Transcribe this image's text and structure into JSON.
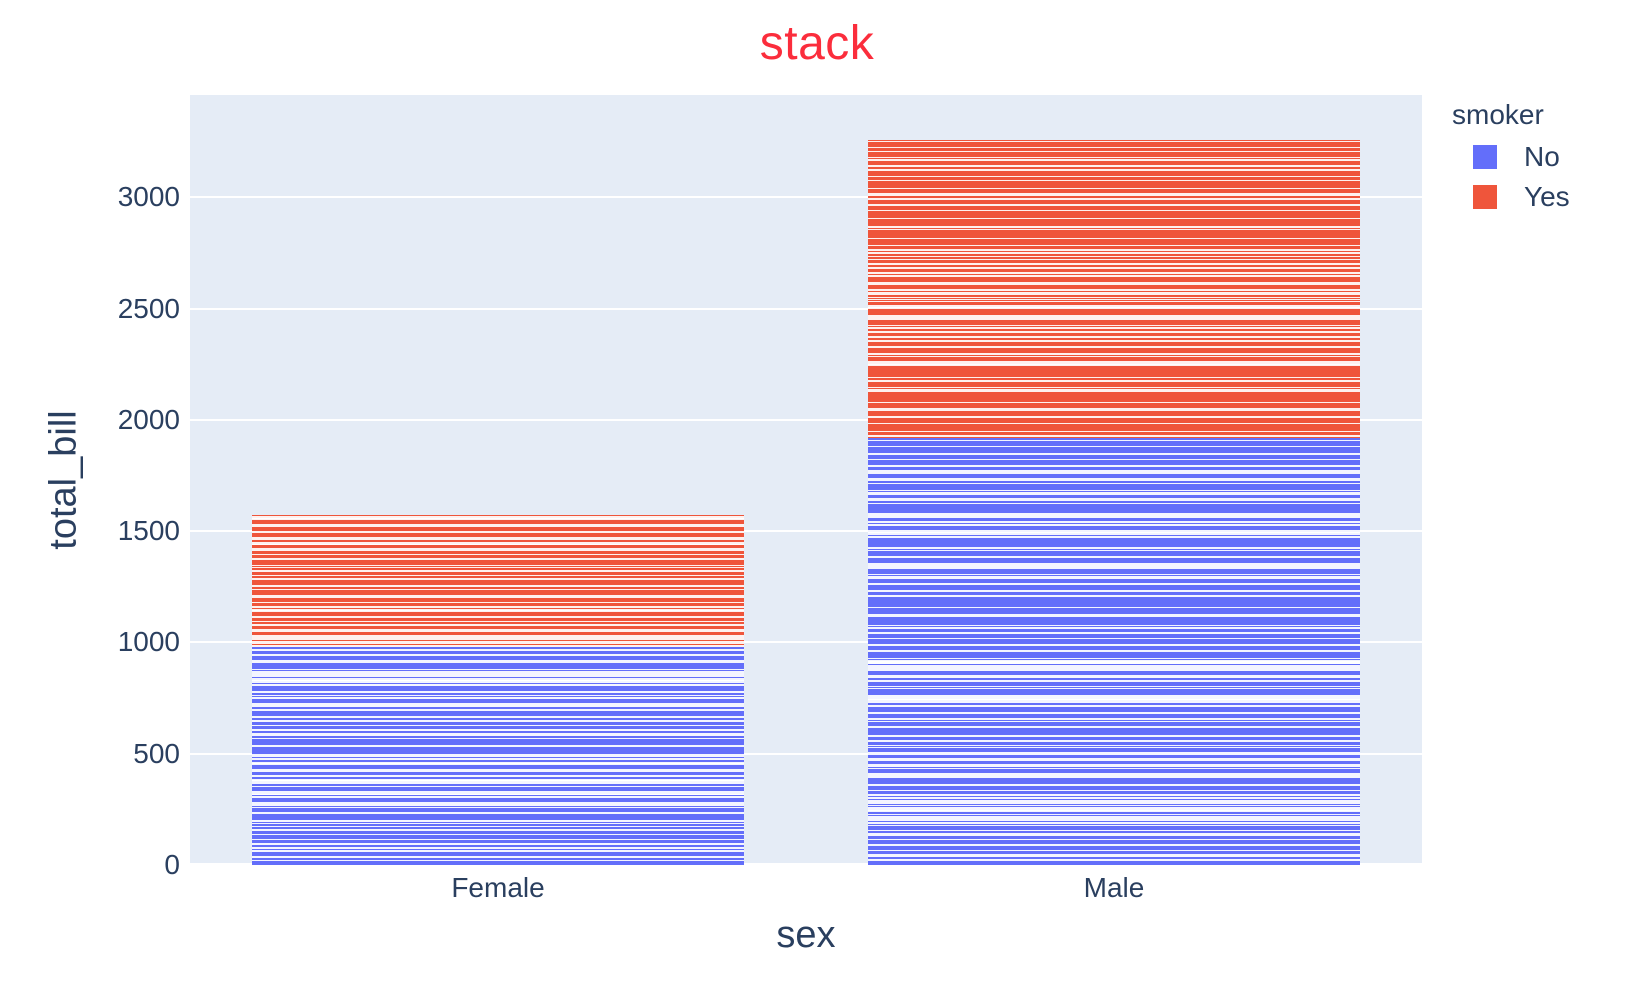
{
  "figure": {
    "title": "stack",
    "title_color": "#fb2d3c"
  },
  "x_axis": {
    "title": "sex",
    "tick_labels": [
      "Female",
      "Male"
    ]
  },
  "y_axis": {
    "title": "total_bill",
    "tick_labels": [
      "0",
      "500",
      "1000",
      "1500",
      "2000",
      "2500",
      "3000"
    ],
    "tick_values": [
      0,
      500,
      1000,
      1500,
      2000,
      2500,
      3000
    ],
    "max": 3460
  },
  "legend": {
    "title": "smoker",
    "items": [
      {
        "label": "No",
        "color": "#636EFA"
      },
      {
        "label": "Yes",
        "color": "#EF553B"
      }
    ]
  },
  "chart_data": {
    "type": "bar",
    "barmode": "stack",
    "orientation": "vertical",
    "title": "stack",
    "xlabel": "sex",
    "ylabel": "total_bill",
    "categories": [
      "Female",
      "Male"
    ],
    "series": [
      {
        "name": "No",
        "color": "#636EFA",
        "values": [
          978,
          1920
        ],
        "segment_counts": [
          54,
          97
        ]
      },
      {
        "name": "Yes",
        "color": "#EF553B",
        "values": [
          593,
          1337
        ],
        "segment_counts": [
          33,
          60
        ]
      }
    ],
    "stacked_totals": [
      1571,
      3257
    ],
    "ylim": [
      0,
      3460
    ],
    "grid": true,
    "gridline_color": "#ffffff",
    "plot_background": "#E5ECF6",
    "legend_position": "right",
    "note": "Each colored block is built from many thin stacked record segments separated by white lines"
  },
  "colors": {
    "text": "#2a3f5f",
    "page_background": "#ffffff"
  }
}
